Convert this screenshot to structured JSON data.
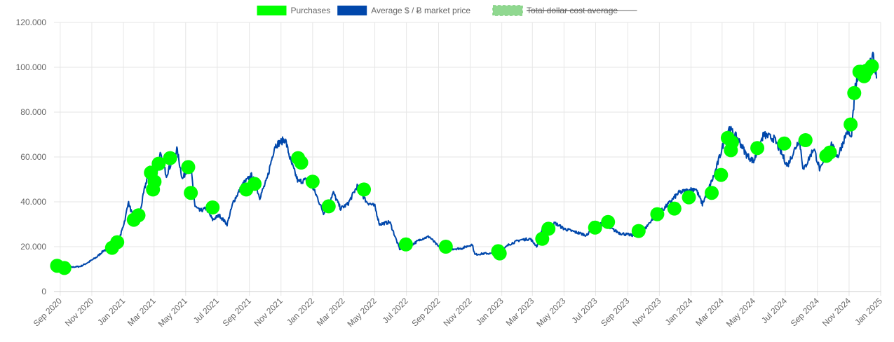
{
  "chart_data": {
    "type": "line",
    "legend": {
      "position": "top",
      "items": [
        {
          "label": "Purchases",
          "color": "#00ff00",
          "hidden": false
        },
        {
          "label": "Average $ / Ƀ market price",
          "color": "#0047ab",
          "hidden": false
        },
        {
          "label": "Total dollar cost average",
          "color": "#90d890",
          "hidden": true
        }
      ]
    },
    "y_axis": {
      "min": 0,
      "max": 120000,
      "ticks": [
        {
          "value": 0,
          "label": "0"
        },
        {
          "value": 20000,
          "label": "20.000"
        },
        {
          "value": 40000,
          "label": "40.000"
        },
        {
          "value": 60000,
          "label": "60.000"
        },
        {
          "value": 80000,
          "label": "80.000"
        },
        {
          "value": 100000,
          "label": "100.000"
        },
        {
          "value": 120000,
          "label": "120.000"
        }
      ]
    },
    "x_axis": {
      "start": "2020-08-20",
      "end": "2025-01-01",
      "tick_labels": [
        {
          "date": "2020-09-01",
          "label": "Sep 2020"
        },
        {
          "date": "2020-11-01",
          "label": "Nov 2020"
        },
        {
          "date": "2021-01-01",
          "label": "Jan 2021"
        },
        {
          "date": "2021-03-01",
          "label": "Mar 2021"
        },
        {
          "date": "2021-05-01",
          "label": "May 2021"
        },
        {
          "date": "2021-07-01",
          "label": "Jul 2021"
        },
        {
          "date": "2021-09-01",
          "label": "Sep 2021"
        },
        {
          "date": "2021-11-01",
          "label": "Nov 2021"
        },
        {
          "date": "2022-01-01",
          "label": "Jan 2022"
        },
        {
          "date": "2022-03-01",
          "label": "Mar 2022"
        },
        {
          "date": "2022-05-01",
          "label": "May 2022"
        },
        {
          "date": "2022-07-01",
          "label": "Jul 2022"
        },
        {
          "date": "2022-09-01",
          "label": "Sep 2022"
        },
        {
          "date": "2022-11-01",
          "label": "Nov 2022"
        },
        {
          "date": "2023-01-01",
          "label": "Jan 2023"
        },
        {
          "date": "2023-03-01",
          "label": "Mar 2023"
        },
        {
          "date": "2023-05-01",
          "label": "May 2023"
        },
        {
          "date": "2023-07-01",
          "label": "Jul 2023"
        },
        {
          "date": "2023-09-01",
          "label": "Sep 2023"
        },
        {
          "date": "2023-11-01",
          "label": "Nov 2023"
        },
        {
          "date": "2024-01-01",
          "label": "Jan 2024"
        },
        {
          "date": "2024-03-01",
          "label": "Mar 2024"
        },
        {
          "date": "2024-05-01",
          "label": "May 2024"
        },
        {
          "date": "2024-07-01",
          "label": "Jul 2024"
        },
        {
          "date": "2024-09-01",
          "label": "Sep 2024"
        },
        {
          "date": "2024-11-01",
          "label": "Nov 2024"
        },
        {
          "date": "2025-01-01",
          "label": "Jan 2025"
        }
      ]
    },
    "grid": true,
    "series": [
      {
        "name": "Average $ / Ƀ market price",
        "kind": "line",
        "color": "#0047ab",
        "points": [
          [
            "2020-08-25",
            11500
          ],
          [
            "2020-09-05",
            10500
          ],
          [
            "2020-09-20",
            10800
          ],
          [
            "2020-10-10",
            11200
          ],
          [
            "2020-10-25",
            13000
          ],
          [
            "2020-11-10",
            15300
          ],
          [
            "2020-11-25",
            18500
          ],
          [
            "2020-12-10",
            18500
          ],
          [
            "2020-12-25",
            24000
          ],
          [
            "2021-01-05",
            33000
          ],
          [
            "2021-01-10",
            40000
          ],
          [
            "2021-01-20",
            33000
          ],
          [
            "2021-02-01",
            34000
          ],
          [
            "2021-02-10",
            45000
          ],
          [
            "2021-02-21",
            56000
          ],
          [
            "2021-03-01",
            47000
          ],
          [
            "2021-03-13",
            61000
          ],
          [
            "2021-03-25",
            52000
          ],
          [
            "2021-04-14",
            63500
          ],
          [
            "2021-04-25",
            50000
          ],
          [
            "2021-05-10",
            58000
          ],
          [
            "2021-05-19",
            38000
          ],
          [
            "2021-05-28",
            36000
          ],
          [
            "2021-06-10",
            37000
          ],
          [
            "2021-06-22",
            32000
          ],
          [
            "2021-07-05",
            34000
          ],
          [
            "2021-07-20",
            30000
          ],
          [
            "2021-08-01",
            40000
          ],
          [
            "2021-08-20",
            48000
          ],
          [
            "2021-09-06",
            52000
          ],
          [
            "2021-09-21",
            42000
          ],
          [
            "2021-10-05",
            50000
          ],
          [
            "2021-10-20",
            65000
          ],
          [
            "2021-11-09",
            68000
          ],
          [
            "2021-11-20",
            58000
          ],
          [
            "2021-12-04",
            49000
          ],
          [
            "2021-12-25",
            50000
          ],
          [
            "2022-01-10",
            42000
          ],
          [
            "2022-01-22",
            35000
          ],
          [
            "2022-02-10",
            44000
          ],
          [
            "2022-02-24",
            37000
          ],
          [
            "2022-03-10",
            39000
          ],
          [
            "2022-03-28",
            47000
          ],
          [
            "2022-04-15",
            40000
          ],
          [
            "2022-05-01",
            38000
          ],
          [
            "2022-05-10",
            30000
          ],
          [
            "2022-05-30",
            31000
          ],
          [
            "2022-06-13",
            22000
          ],
          [
            "2022-06-18",
            19000
          ],
          [
            "2022-07-05",
            20000
          ],
          [
            "2022-07-30",
            23500
          ],
          [
            "2022-08-14",
            24500
          ],
          [
            "2022-09-01",
            20000
          ],
          [
            "2022-09-25",
            19000
          ],
          [
            "2022-10-15",
            19200
          ],
          [
            "2022-11-05",
            21000
          ],
          [
            "2022-11-10",
            16500
          ],
          [
            "2022-12-01",
            17000
          ],
          [
            "2022-12-25",
            16800
          ],
          [
            "2023-01-15",
            21000
          ],
          [
            "2023-02-05",
            23000
          ],
          [
            "2023-02-25",
            23500
          ],
          [
            "2023-03-10",
            20000
          ],
          [
            "2023-03-20",
            28000
          ],
          [
            "2023-04-14",
            30500
          ],
          [
            "2023-05-01",
            28000
          ],
          [
            "2023-06-15",
            25000
          ],
          [
            "2023-06-25",
            30500
          ],
          [
            "2023-07-15",
            30000
          ],
          [
            "2023-08-17",
            26000
          ],
          [
            "2023-09-11",
            25000
          ],
          [
            "2023-10-01",
            27000
          ],
          [
            "2023-10-24",
            34000
          ],
          [
            "2023-11-10",
            37000
          ],
          [
            "2023-12-08",
            44000
          ],
          [
            "2024-01-10",
            46000
          ],
          [
            "2024-01-23",
            39000
          ],
          [
            "2024-02-15",
            52000
          ],
          [
            "2024-03-05",
            67000
          ],
          [
            "2024-03-14",
            73000
          ],
          [
            "2024-04-01",
            68000
          ],
          [
            "2024-04-17",
            61000
          ],
          [
            "2024-05-01",
            58000
          ],
          [
            "2024-05-20",
            70000
          ],
          [
            "2024-06-10",
            68000
          ],
          [
            "2024-06-25",
            61000
          ],
          [
            "2024-07-05",
            56000
          ],
          [
            "2024-07-28",
            68000
          ],
          [
            "2024-08-05",
            54000
          ],
          [
            "2024-08-25",
            64000
          ],
          [
            "2024-09-06",
            54000
          ],
          [
            "2024-09-28",
            65500
          ],
          [
            "2024-10-10",
            60000
          ],
          [
            "2024-10-29",
            72000
          ],
          [
            "2024-11-05",
            68000
          ],
          [
            "2024-11-13",
            91000
          ],
          [
            "2024-11-22",
            99000
          ],
          [
            "2024-12-05",
            97000
          ],
          [
            "2024-12-17",
            106000
          ],
          [
            "2024-12-24",
            95000
          ]
        ]
      },
      {
        "name": "Purchases",
        "kind": "scatter",
        "color": "#00ff00",
        "points": [
          [
            "2020-08-26",
            11500
          ],
          [
            "2020-09-09",
            10500
          ],
          [
            "2020-12-10",
            19500
          ],
          [
            "2020-12-20",
            22000
          ],
          [
            "2021-01-21",
            32000
          ],
          [
            "2021-01-30",
            34000
          ],
          [
            "2021-02-23",
            53000
          ],
          [
            "2021-02-27",
            45500
          ],
          [
            "2021-03-02",
            49000
          ],
          [
            "2021-03-10",
            57000
          ],
          [
            "2021-04-01",
            59500
          ],
          [
            "2021-05-06",
            55500
          ],
          [
            "2021-05-11",
            44000
          ],
          [
            "2021-06-22",
            37500
          ],
          [
            "2021-08-26",
            45500
          ],
          [
            "2021-09-11",
            48000
          ],
          [
            "2021-12-04",
            59500
          ],
          [
            "2021-12-10",
            57500
          ],
          [
            "2022-01-01",
            49000
          ],
          [
            "2022-02-01",
            38000
          ],
          [
            "2022-04-10",
            45500
          ],
          [
            "2022-06-30",
            21000
          ],
          [
            "2022-09-15",
            20000
          ],
          [
            "2022-12-25",
            18000
          ],
          [
            "2022-12-28",
            17000
          ],
          [
            "2023-03-20",
            23500
          ],
          [
            "2023-04-01",
            28000
          ],
          [
            "2023-06-30",
            28500
          ],
          [
            "2023-07-25",
            31000
          ],
          [
            "2023-09-22",
            27000
          ],
          [
            "2023-10-28",
            34500
          ],
          [
            "2023-11-30",
            37000
          ],
          [
            "2023-12-28",
            42000
          ],
          [
            "2024-02-10",
            44000
          ],
          [
            "2024-02-28",
            52000
          ],
          [
            "2024-03-12",
            68500
          ],
          [
            "2024-03-18",
            63000
          ],
          [
            "2024-03-20",
            66500
          ],
          [
            "2024-05-08",
            64000
          ],
          [
            "2024-06-29",
            66000
          ],
          [
            "2024-08-09",
            67500
          ],
          [
            "2024-09-18",
            60500
          ],
          [
            "2024-09-25",
            62000
          ],
          [
            "2024-11-04",
            74500
          ],
          [
            "2024-11-11",
            88500
          ],
          [
            "2024-11-21",
            98000
          ],
          [
            "2024-11-30",
            96000
          ],
          [
            "2024-12-05",
            98500
          ],
          [
            "2024-12-15",
            100500
          ]
        ]
      },
      {
        "name": "Total dollar cost average",
        "kind": "line",
        "color": "#90d890",
        "hidden": true,
        "points": []
      }
    ]
  }
}
